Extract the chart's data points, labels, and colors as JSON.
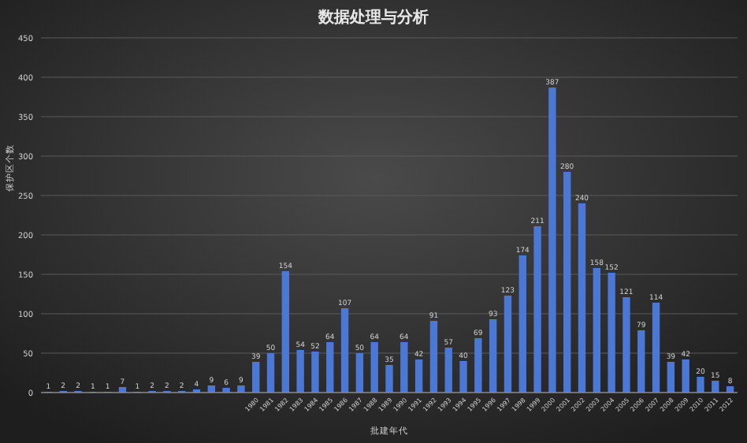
{
  "chart_data": {
    "type": "bar",
    "title": "数据处理与分析",
    "xlabel": "批建年代",
    "ylabel": "保护区个数",
    "categories": [
      null,
      null,
      null,
      null,
      null,
      null,
      null,
      null,
      null,
      null,
      null,
      null,
      null,
      null,
      "1980",
      "1981",
      "1982",
      "1983",
      "1984",
      "1985",
      "1986",
      "1987",
      "1988",
      "1989",
      "1990",
      "1991",
      "1992",
      "1993",
      "1994",
      "1995",
      "1996",
      "1997",
      "1998",
      "1999",
      "2000",
      "2001",
      "2002",
      "2003",
      "2004",
      "2005",
      "2006",
      "2007",
      "2008",
      "2009",
      "2010",
      "2011",
      "2012"
    ],
    "values": [
      1,
      2,
      2,
      1,
      1,
      7,
      1,
      2,
      2,
      2,
      4,
      9,
      6,
      9,
      39,
      50,
      154,
      54,
      52,
      64,
      107,
      50,
      64,
      35,
      64,
      42,
      91,
      57,
      40,
      69,
      93,
      123,
      174,
      211,
      387,
      280,
      240,
      158,
      152,
      121,
      79,
      114,
      39,
      42,
      20,
      15,
      8
    ],
    "color": "#4a78d4",
    "ylim": [
      0,
      450
    ],
    "yticks": [
      0,
      50,
      100,
      150,
      200,
      250,
      300,
      350,
      400,
      450
    ],
    "grid": "y",
    "data_labels": true
  }
}
